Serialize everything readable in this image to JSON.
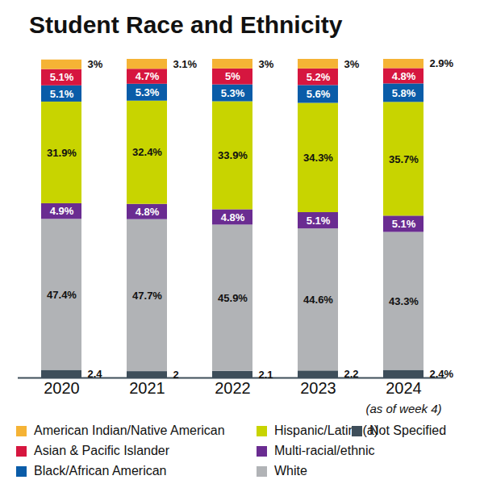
{
  "chart_data": {
    "type": "bar",
    "stacked": true,
    "title": "Student Race and Ethnicity",
    "categories": [
      "2020",
      "2021",
      "2022",
      "2023",
      "2024"
    ],
    "annotations": [
      {
        "text": "(as of week 4)",
        "category": "2024"
      }
    ],
    "ylim": [
      0,
      100
    ],
    "yticks": [],
    "tick_labels": "x",
    "data_labels": true,
    "legend": "bottom",
    "series": [
      {
        "name": "American Indian/Native American",
        "color": "#f5b335",
        "values": [
          3,
          3.1,
          3,
          3,
          2.9
        ],
        "value_labels": [
          "3%",
          "3.1%",
          "3%",
          "3%",
          "2.9%"
        ]
      },
      {
        "name": "Asian & Pacific Islander",
        "color": "#d6163f",
        "values": [
          5.1,
          4.7,
          5,
          5.2,
          4.8
        ],
        "value_labels": [
          "5.1%",
          "4.7%",
          "5%",
          "5.2%",
          "4.8%"
        ]
      },
      {
        "name": "Black/African American",
        "color": "#0a5ca8",
        "values": [
          5.1,
          5.3,
          5.3,
          5.6,
          5.8
        ],
        "value_labels": [
          "5.1%",
          "5.3%",
          "5.3%",
          "5.6%",
          "5.8%"
        ]
      },
      {
        "name": "Hispanic/Latino(a)",
        "color": "#c8d400",
        "values": [
          31.9,
          32.4,
          33.9,
          34.3,
          35.7
        ],
        "value_labels": [
          "31.9%",
          "32.4%",
          "33.9%",
          "34.3%",
          "35.7%"
        ]
      },
      {
        "name": "Multi-racial/ethnic",
        "color": "#6a2c91",
        "values": [
          4.9,
          4.8,
          4.8,
          5.1,
          5.1
        ],
        "value_labels": [
          "4.9%",
          "4.8%",
          "4.8%",
          "5.1%",
          "5.1%"
        ]
      },
      {
        "name": "White",
        "color": "#b1b3b6",
        "values": [
          47.4,
          47.7,
          45.9,
          44.6,
          43.3
        ],
        "value_labels": [
          "47.4%",
          "47.7%",
          "45.9%",
          "44.6%",
          "43.3%"
        ]
      },
      {
        "name": "Not Specified",
        "color": "#3e4e5a",
        "values": [
          2.4,
          2,
          2.1,
          2.2,
          2.4
        ],
        "value_labels": [
          "2.4",
          "2",
          "2.1",
          "2.2",
          "2.4%"
        ]
      }
    ]
  }
}
